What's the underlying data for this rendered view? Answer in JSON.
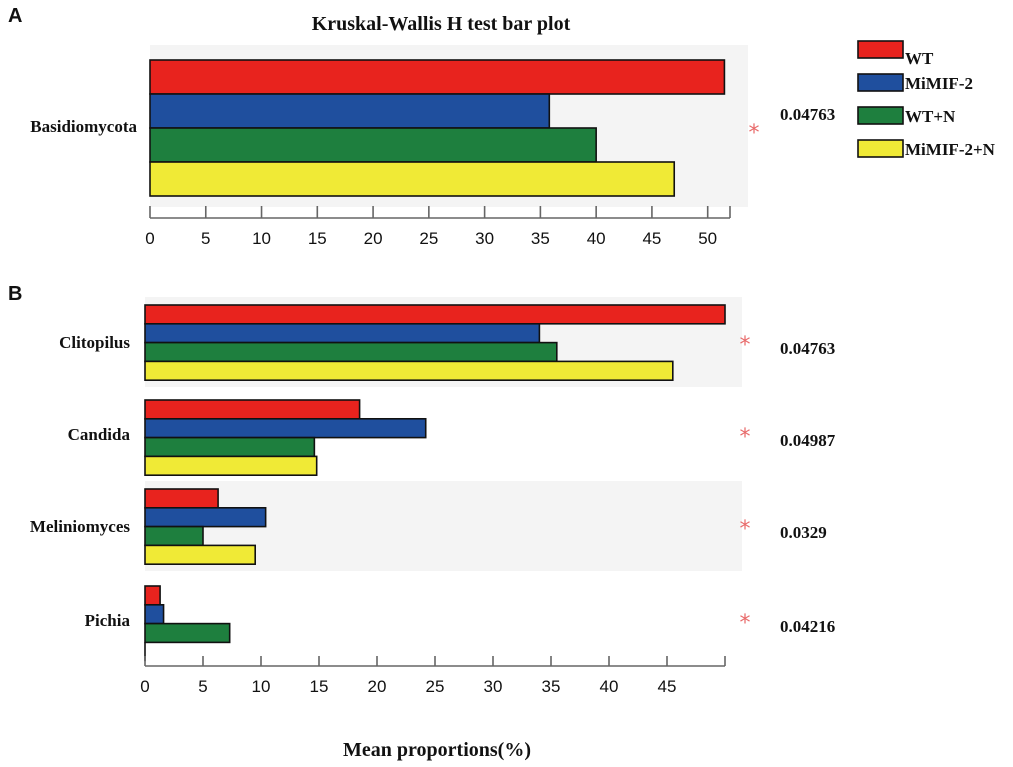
{
  "chart_data": [
    {
      "panel": "A",
      "type": "bar",
      "orientation": "horizontal",
      "title": "Kruskal-Wallis H test bar plot",
      "xlim": [
        0,
        52
      ],
      "ticks": [
        0,
        5,
        10,
        15,
        20,
        25,
        30,
        35,
        40,
        45,
        50
      ],
      "categories": [
        "Basidiomycota"
      ],
      "p_values": [
        "0.04763"
      ],
      "significance_marks": [
        "*"
      ],
      "series": [
        {
          "name": "WT",
          "values": [
            51.5
          ]
        },
        {
          "name": "MiMIF-2",
          "values": [
            35.8
          ]
        },
        {
          "name": "WT+N",
          "values": [
            40.0
          ]
        },
        {
          "name": "MiMIF-2+N",
          "values": [
            47.0
          ]
        }
      ]
    },
    {
      "panel": "B",
      "type": "bar",
      "orientation": "horizontal",
      "xlabel": "Mean proportions(%)",
      "xlim": [
        0,
        50
      ],
      "ticks": [
        0,
        5,
        10,
        15,
        20,
        25,
        30,
        35,
        40,
        45
      ],
      "categories": [
        "Clitopilus",
        "Candida",
        "Meliniomyces",
        "Pichia"
      ],
      "p_values": [
        "0.04763",
        "0.04987",
        "0.0329",
        "0.04216"
      ],
      "significance_marks": [
        "*",
        "*",
        "*",
        "*"
      ],
      "series": [
        {
          "name": "WT",
          "values": [
            50.0,
            18.5,
            6.3,
            1.3
          ]
        },
        {
          "name": "MiMIF-2",
          "values": [
            34.0,
            24.2,
            10.4,
            1.6
          ]
        },
        {
          "name": "WT+N",
          "values": [
            35.5,
            14.6,
            5.0,
            7.3
          ]
        },
        {
          "name": "MiMIF-2+N",
          "values": [
            45.5,
            14.8,
            9.5,
            0
          ]
        }
      ]
    }
  ],
  "legend": [
    {
      "name": "WT",
      "color": "#e8231e"
    },
    {
      "name": "MiMIF-2",
      "color": "#1f4f9e"
    },
    {
      "name": "WT+N",
      "color": "#1e7f3e"
    },
    {
      "name": "MiMIF-2+N",
      "color": "#f0ea36"
    }
  ],
  "band_color": "#f4f4f4"
}
